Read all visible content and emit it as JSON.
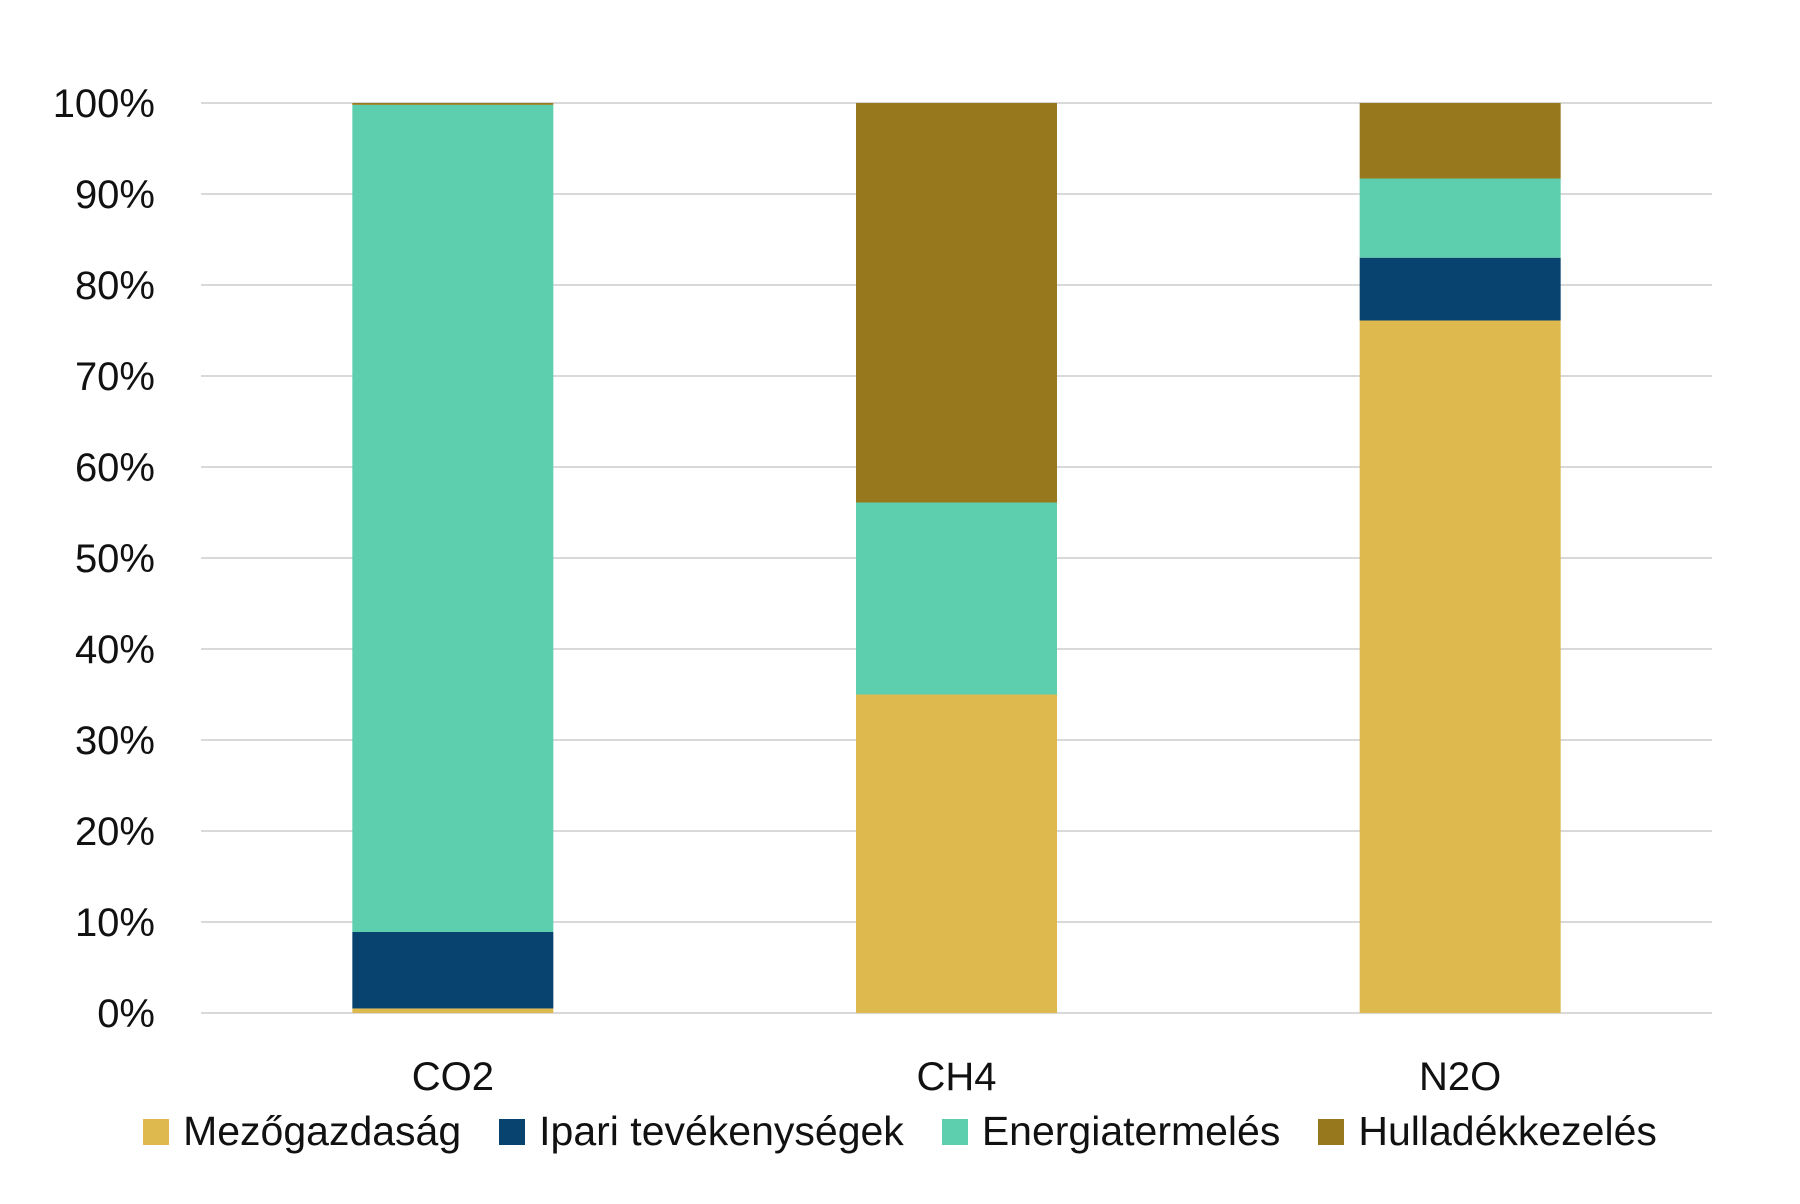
{
  "chart_data": {
    "type": "bar",
    "stacked": "percent",
    "title": "",
    "xlabel": "",
    "ylabel": "",
    "ylim": [
      0,
      100
    ],
    "yticks": [
      "0%",
      "10%",
      "20%",
      "30%",
      "40%",
      "50%",
      "60%",
      "70%",
      "80%",
      "90%",
      "100%"
    ],
    "categories": [
      "CO2",
      "CH4",
      "N2O"
    ],
    "series": [
      {
        "name": "Mezőgazdaság",
        "color": "#DDB94E",
        "values": [
          0.5,
          35.0,
          76.1
        ]
      },
      {
        "name": "Ipari tevékenységek",
        "color": "#08436F",
        "values": [
          8.4,
          0.0,
          6.9
        ]
      },
      {
        "name": "Energiatermelés",
        "color": "#5DCFAE",
        "values": [
          90.9,
          21.1,
          8.7
        ]
      },
      {
        "name": "Hulladékkezelés",
        "color": "#98781C",
        "values": [
          0.2,
          43.9,
          8.3
        ]
      }
    ],
    "grid": true,
    "legend": "bottom"
  }
}
